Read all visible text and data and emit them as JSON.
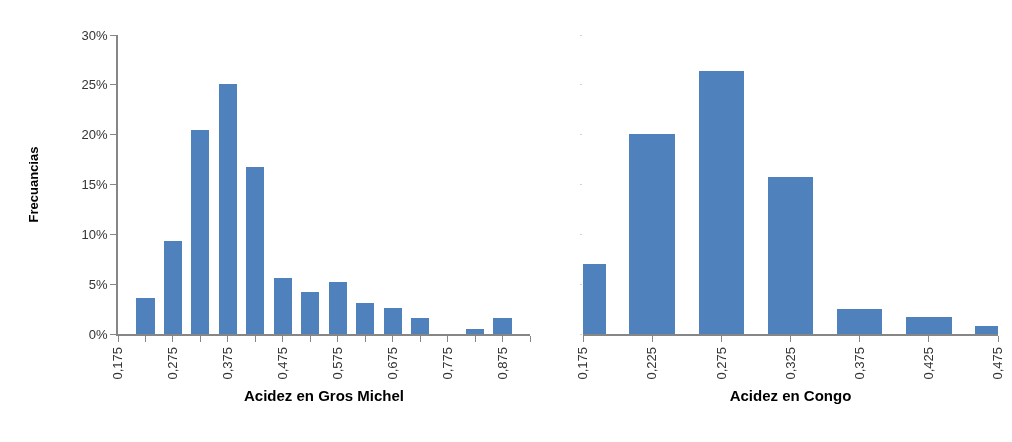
{
  "chart_data": [
    {
      "type": "bar",
      "ylabel": "Frecuancias",
      "xlabel": "Acidez en Gros Michel",
      "color": "#4f81bd",
      "grid": false,
      "x": [
        0.225,
        0.275,
        0.325,
        0.375,
        0.425,
        0.475,
        0.525,
        0.575,
        0.625,
        0.675,
        0.725,
        0.775,
        0.825,
        0.875
      ],
      "values": [
        3.6,
        9.3,
        20.5,
        25.1,
        16.8,
        5.6,
        4.2,
        5.2,
        3.1,
        2.6,
        1.6,
        0,
        0.5,
        1.6
      ],
      "xlim": [
        0.175,
        0.925
      ],
      "xticks": [
        {
          "value": 0.175,
          "label": "0,175"
        },
        {
          "value": 0.225,
          "label": null
        },
        {
          "value": 0.275,
          "label": "0,275"
        },
        {
          "value": 0.325,
          "label": null
        },
        {
          "value": 0.375,
          "label": "0,375"
        },
        {
          "value": 0.425,
          "label": null
        },
        {
          "value": 0.475,
          "label": "0,475"
        },
        {
          "value": 0.525,
          "label": null
        },
        {
          "value": 0.575,
          "label": "0,575"
        },
        {
          "value": 0.625,
          "label": null
        },
        {
          "value": 0.675,
          "label": "0,675"
        },
        {
          "value": 0.725,
          "label": null
        },
        {
          "value": 0.775,
          "label": "0,775"
        },
        {
          "value": 0.825,
          "label": null
        },
        {
          "value": 0.875,
          "label": "0,875"
        },
        {
          "value": 0.925,
          "label": null
        }
      ],
      "ylim": [
        0,
        30
      ],
      "yticks": [
        {
          "value": 0,
          "label": "0%"
        },
        {
          "value": 5,
          "label": "5%"
        },
        {
          "value": 10,
          "label": "10%"
        },
        {
          "value": 15,
          "label": "15%"
        },
        {
          "value": 20,
          "label": "20%"
        },
        {
          "value": 25,
          "label": "25%"
        },
        {
          "value": 30,
          "label": "30%"
        }
      ]
    },
    {
      "type": "bar",
      "xlabel": "Acidez en Congo",
      "color": "#4f81bd",
      "grid": false,
      "tick_labels": "x",
      "x": [
        0.175,
        0.225,
        0.275,
        0.325,
        0.375,
        0.425,
        0.475
      ],
      "values": [
        7.0,
        20.1,
        26.4,
        15.8,
        2.5,
        1.7,
        0.8
      ],
      "xlim": [
        0.175,
        0.475
      ],
      "xticks": [
        {
          "value": 0.175,
          "label": "0,175"
        },
        {
          "value": 0.225,
          "label": "0,225"
        },
        {
          "value": 0.275,
          "label": "0,275"
        },
        {
          "value": 0.325,
          "label": "0,325"
        },
        {
          "value": 0.375,
          "label": "0,375"
        },
        {
          "value": 0.425,
          "label": "0,425"
        },
        {
          "value": 0.475,
          "label": "0,475"
        }
      ],
      "ylim": [
        0,
        30
      ],
      "yticks": [
        {
          "value": 0,
          "label": null
        },
        {
          "value": 5,
          "label": null
        },
        {
          "value": 10,
          "label": null
        },
        {
          "value": 15,
          "label": null
        },
        {
          "value": 20,
          "label": null
        },
        {
          "value": 25,
          "label": null
        },
        {
          "value": 30,
          "label": null
        }
      ]
    }
  ]
}
